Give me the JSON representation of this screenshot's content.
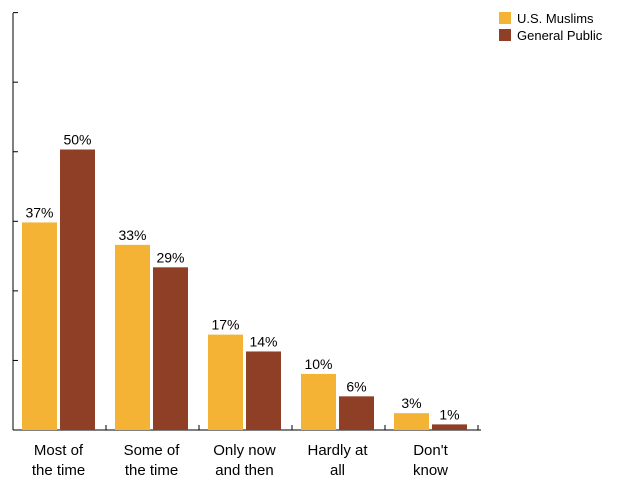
{
  "chart_data": {
    "type": "bar",
    "title": "",
    "xlabel": "",
    "ylabel": "",
    "ylim": [
      0,
      60
    ],
    "grid": false,
    "legend_position": "top-right",
    "categories": [
      [
        "Most of",
        "the time"
      ],
      [
        "Some of",
        "the time"
      ],
      [
        "Only now",
        "and then"
      ],
      [
        "Hardly at",
        "all"
      ],
      [
        "Don't",
        "know"
      ]
    ],
    "series": [
      {
        "name": "U.S. Muslims",
        "color": "#F5B335",
        "values": [
          37,
          33,
          17,
          10,
          3
        ],
        "labels": [
          "37%",
          "33%",
          "17%",
          "10%",
          "3%"
        ]
      },
      {
        "name": "General Public",
        "color": "#8E3F26",
        "values": [
          50,
          29,
          14,
          6,
          1
        ],
        "labels": [
          "50%",
          "29%",
          "14%",
          "6%",
          "1%"
        ]
      }
    ]
  }
}
